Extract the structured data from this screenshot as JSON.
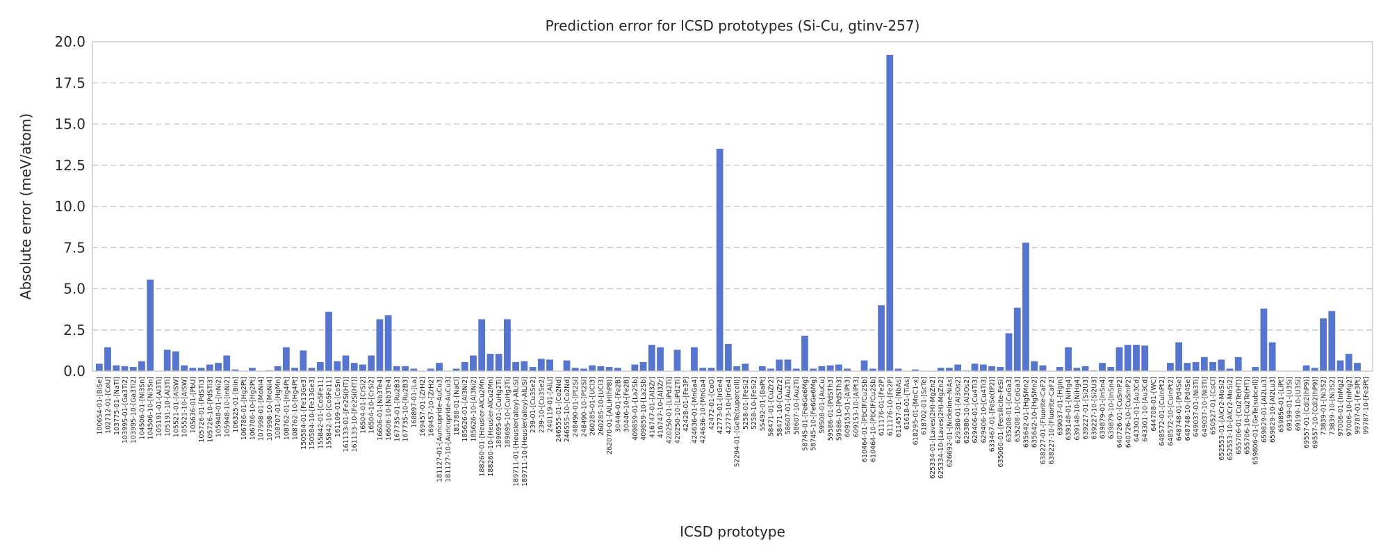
{
  "chart_data": {
    "type": "bar",
    "title": "Prediction error for ICSD prototypes (Si-Cu, gtinv-257)",
    "xlabel": "ICSD prototype",
    "ylabel": "Absolute error (meV/atom)",
    "ylim": [
      0,
      20
    ],
    "yticks": [
      "0.0",
      "2.5",
      "5.0",
      "7.5",
      "10.0",
      "12.5",
      "15.0",
      "17.5",
      "20.0"
    ],
    "grid": "y-dashed",
    "bar_color": "#5675cf",
    "categories": [
      "100654-01-[BiSe]",
      "102712-01-[CoU]",
      "103775-01-[NaTl]",
      "103995-01-[Ga3Ti2]",
      "103995-10-[Ga3Ti2]",
      "104506-01-[Ni3Sn]",
      "104506-10-[Ni3Sn]",
      "105191-01-[Al3Ti]",
      "105191-10-[Al3Ti]",
      "105521-01-[AlSW]",
      "105521-10-[AlSW]",
      "105636-01-[PbU]",
      "105726-01-[PdSTi3]",
      "105726-10-[PdSTi3]",
      "105948-01-[InNi2]",
      "105948-10-[InNi2]",
      "106325-01-[BiIn]",
      "106786-01-[Hg2Pt]",
      "106786-10-[Hg2Pt]",
      "107998-01-[MoNi4]",
      "107998-10-[MoNi4]",
      "108707-01-[HgMn]",
      "108762-01-[Hg4Pt]",
      "108762-10-[Hg4Pt]",
      "150584-01-[Fe13Ge3]",
      "150584-10-[Fe13Ge3]",
      "155842-01-[Co5Fe11]",
      "155842-10-[Co5Fe11]",
      "161109-01-[CoSn]",
      "161133-01-[Fe2Si(HT)]",
      "161133-10-[Fe2Si(HT)]",
      "16504-01-[CrSi2]",
      "16504-10-[CrSi2]",
      "16606-01-[Nb3Te4]",
      "16606-10-[Nb3Te4]",
      "167735-01-[Ru2B3]",
      "167735-10-[Ru2B3]",
      "168897-01-[La]",
      "169457-01-[ZrH2]",
      "169457-10-[ZrH2]",
      "181127-01-[Auricupride-AuCu3]",
      "181127-10-[Auricupride-AuCu3]",
      "181788-01-[NaCl]",
      "185626-01-[Al3Ni2]",
      "185626-10-[Al3Ni2]",
      "188260-01-[Heusler-AlCu2Mn]",
      "188260-10-[Heusler-AlCu2Mn]",
      "189695-01-[CuHg2Ti]",
      "189695-10-[CuHg2Ti]",
      "189711-01-[Heusler(alloy)-AlLiSi]",
      "189711-10-[Heusler(alloy)-AlLiSi]",
      "239-01-[Cu3Se2]",
      "239-10-[Cu3Se2]",
      "240119-01-[AlLi]",
      "246555-01-[Co2Nd]",
      "246555-10-[Co2Nd]",
      "248490-01-[Pt2Si]",
      "248490-10-[Pt2Si]",
      "260285-01-[UCl3]",
      "260285-10-[UCl3]",
      "262070-01-[AlLiH(hP8)]",
      "30446-01-[Fe2B]",
      "30446-10-[Fe2B]",
      "409859-01-[La2Sb]",
      "409859-10-[La2Sb]",
      "416747-01-[Al3Zr]",
      "416747-10-[Al3Zr]",
      "420250-01-[LiPd2Ti]",
      "420250-10-[LiPd2Ti]",
      "42428-01-[Fe3P]",
      "424636-01-[MnGa4]",
      "424636-10-[MnGa4]",
      "42472-01-[CoO]",
      "42773-01-[IrGe4]",
      "42773-10-[IrGe4]",
      "52294-01-[GeTe(supercell)]",
      "5258-01-[FeSi2]",
      "5258-10-[FeSi2]",
      "55492-01-[BaPt]",
      "58471-01-[CuZr2]",
      "58471-10-[CuZr2]",
      "58607-01-[Au2Ti]",
      "58607-10-[Au2Ti]",
      "58745-01-[Fe6Ge6Mg]",
      "58745-10-[Fe6Ge6Mg]",
      "59508-01-[AuCu]",
      "59586-01-[PdSTh3]",
      "59586-10-[PdSTh3]",
      "609153-01-[AlPt3]",
      "609153-10-[AlPt3]",
      "610464-01-[PbClF/Cu2Sb]",
      "610464-10-[PbClF/Cu2Sb]",
      "611176-01-[Fe2P]",
      "611176-10-[Fe2P]",
      "611457-01-[NbAs]",
      "61618-01-[TiAs]",
      "618295-01-[MoC1-x]",
      "618702-01-[ScTe]",
      "625334-01-[Laves(2H)-MgZn2]",
      "625334-10-[Laves(2H)-MgZn2]",
      "626692-01-[Nickeline-NiAs]",
      "629380-01-[Al3Os2]",
      "629380-10-[Al3Os2]",
      "629406-01-[Cu4Ti3]",
      "629406-10-[Cu4Ti3]",
      "633467-01-[FeSe(tP2)]",
      "635060-01-[Fersilicite-FeSi]",
      "635208-01-[CoGa3]",
      "635208-10-[CoGa3]",
      "635642-01-[Hg5Mn2]",
      "635642-10-[Hg5Mn2]",
      "638227-01-[Fluorite-CaF2]",
      "638227-10-[Fluorite-CaF2]",
      "639037-01-[HgIn]",
      "639148-01-[NiHg4]",
      "639148-10-[NiHg4]",
      "639227-01-[Si2U3]",
      "639227-10-[Si2U3]",
      "639879-01-[InSn4]",
      "639879-10-[InSn4]",
      "640726-01-[CuSmP2]",
      "640726-10-[CuSmP2]",
      "643301-01-[Au3Cd]",
      "643301-10-[Au3Cd]",
      "644708-01-[WC]",
      "648572-01-[CuInPt2]",
      "648572-10-[CuInPt2]",
      "648748-01-[Pd4Se]",
      "648748-10-[Pd4Se]",
      "649037-01-[Ni3Ti]",
      "649037-10-[Ni3Ti]",
      "650527-01-[CsCl]",
      "652553-01-[AlCr2-MoSi2]",
      "652553-10-[AlCr2-MoSi2]",
      "655706-01-[Cu2Te(HT)]",
      "655706-10-[Cu2Te(HT)]",
      "659806-01-[GeTe(subcell)]",
      "659829-01-[Al2Lu3]",
      "659829-10-[Al2Lu3]",
      "659856-01-[LiPt]",
      "69199-01-[U3Si]",
      "69199-10-[U3Si]",
      "69557-01-[CdI2(hP9)]",
      "69557-10-[CdI2(hP9)]",
      "73839-01-[Ni3S2]",
      "73839-10-[Ni3S2]",
      "97006-01-[InMg2]",
      "97006-10-[InMg2]",
      "99787-01-[Fe3Pt]",
      "99787-10-[Fe3Pt]"
    ],
    "values": [
      0.45,
      1.45,
      0.35,
      0.3,
      0.25,
      0.6,
      5.55,
      0.02,
      1.3,
      1.2,
      0.35,
      0.2,
      0.2,
      0.4,
      0.5,
      0.95,
      0.1,
      0.02,
      0.2,
      0.02,
      0.05,
      0.3,
      1.45,
      0.2,
      1.25,
      0.2,
      0.55,
      3.6,
      0.6,
      0.95,
      0.5,
      0.4,
      0.95,
      3.15,
      3.4,
      0.3,
      0.3,
      0.15,
      0.02,
      0.15,
      0.5,
      0.02,
      0.15,
      0.55,
      0.95,
      3.15,
      1.05,
      1.05,
      3.15,
      0.55,
      0.6,
      0.25,
      0.75,
      0.7,
      0.02,
      0.65,
      0.2,
      0.15,
      0.35,
      0.3,
      0.25,
      0.2,
      0.02,
      0.4,
      0.55,
      1.6,
      1.45,
      0.02,
      1.3,
      0.02,
      1.45,
      0.2,
      0.2,
      13.5,
      1.65,
      0.3,
      0.45,
      0.02,
      0.3,
      0.15,
      0.7,
      0.7,
      0.15,
      2.15,
      0.15,
      0.3,
      0.35,
      0.4,
      0.15,
      0.02,
      0.65,
      0.15,
      4.0,
      19.2,
      0.15,
      0.02,
      0.1,
      0.02,
      0.02,
      0.2,
      0.2,
      0.4,
      0.05,
      0.45,
      0.4,
      0.3,
      0.25,
      2.3,
      3.85,
      7.8,
      0.6,
      0.35,
      0.02,
      0.25,
      1.45,
      0.2,
      0.3,
      0.05,
      0.5,
      0.25,
      1.45,
      1.6,
      1.6,
      1.55,
      0.02,
      0.02,
      0.5,
      1.75,
      0.5,
      0.55,
      0.85,
      0.55,
      0.7,
      0.15,
      0.85,
      0.02,
      0.25,
      3.8,
      1.75,
      0.02,
      0.02,
      0.02,
      0.35,
      0.2,
      3.2,
      3.65,
      0.65,
      1.05,
      0.5,
      0.02
    ]
  }
}
